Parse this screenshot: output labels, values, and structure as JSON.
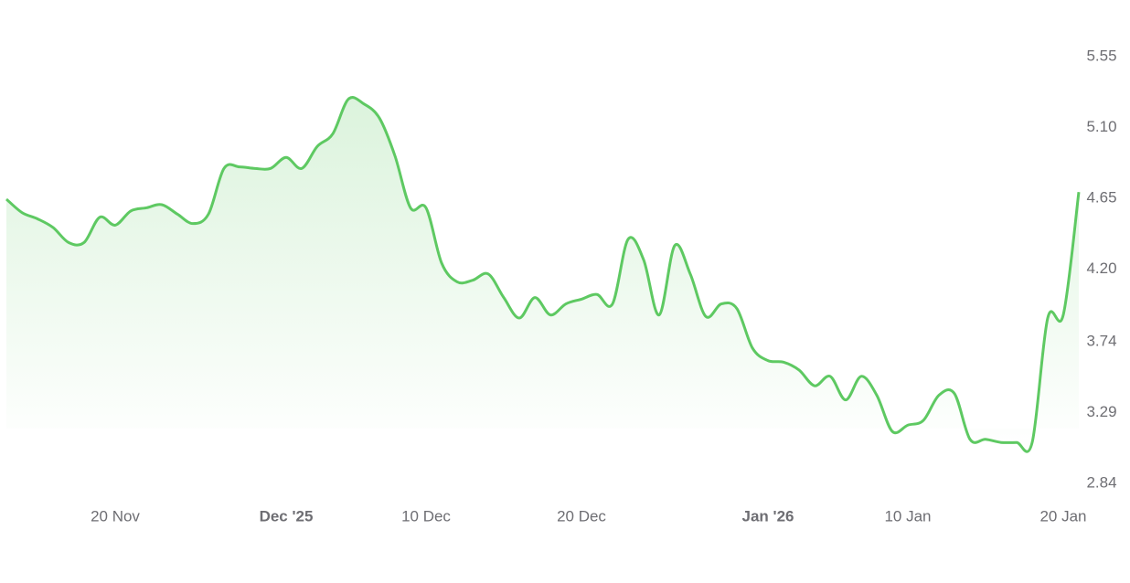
{
  "chart_data": {
    "type": "line",
    "x": [
      "2025-11-13",
      "2025-11-14",
      "2025-11-15",
      "2025-11-16",
      "2025-11-17",
      "2025-11-18",
      "2025-11-19",
      "2025-11-20",
      "2025-11-21",
      "2025-11-22",
      "2025-11-23",
      "2025-11-24",
      "2025-11-25",
      "2025-11-26",
      "2025-11-27",
      "2025-11-28",
      "2025-11-29",
      "2025-11-30",
      "2025-12-01",
      "2025-12-02",
      "2025-12-03",
      "2025-12-04",
      "2025-12-05",
      "2025-12-06",
      "2025-12-07",
      "2025-12-08",
      "2025-12-09",
      "2025-12-10",
      "2025-12-11",
      "2025-12-12",
      "2025-12-13",
      "2025-12-14",
      "2025-12-15",
      "2025-12-16",
      "2025-12-17",
      "2025-12-18",
      "2025-12-19",
      "2025-12-20",
      "2025-12-21",
      "2025-12-22",
      "2025-12-23",
      "2025-12-24",
      "2025-12-25",
      "2025-12-26",
      "2025-12-27",
      "2025-12-28",
      "2025-12-29",
      "2025-12-30",
      "2025-12-31",
      "2026-01-01",
      "2026-01-02",
      "2026-01-03",
      "2026-01-04",
      "2026-01-05",
      "2026-01-06",
      "2026-01-07",
      "2026-01-08",
      "2026-01-09",
      "2026-01-10",
      "2026-01-11",
      "2026-01-12",
      "2026-01-13",
      "2026-01-14",
      "2026-01-15",
      "2026-01-16",
      "2026-01-17",
      "2026-01-18",
      "2026-01-19",
      "2026-01-20",
      "2026-01-21"
    ],
    "series": [
      {
        "color": "#5ec962",
        "values": [
          4.645,
          4.56,
          4.52,
          4.465,
          4.37,
          4.37,
          4.53,
          4.48,
          4.57,
          4.59,
          4.61,
          4.55,
          4.49,
          4.55,
          4.84,
          4.85,
          4.84,
          4.84,
          4.91,
          4.84,
          4.98,
          5.06,
          5.28,
          5.25,
          5.16,
          4.92,
          4.59,
          4.59,
          4.24,
          4.12,
          4.13,
          4.17,
          4.02,
          3.89,
          4.02,
          3.91,
          3.98,
          4.01,
          4.04,
          3.98,
          4.39,
          4.26,
          3.91,
          4.35,
          4.17,
          3.9,
          3.98,
          3.95,
          3.7,
          3.62,
          3.61,
          3.56,
          3.46,
          3.52,
          3.37,
          3.52,
          3.4,
          3.17,
          3.21,
          3.24,
          3.4,
          3.41,
          3.12,
          3.12,
          3.1,
          3.1,
          3.1,
          3.89,
          3.91,
          4.69
        ]
      }
    ],
    "xlim": [
      "2025-11-13",
      "2026-01-21"
    ],
    "xticks": [
      {
        "value": "2025-11-20",
        "label": "20 Nov"
      },
      {
        "value": "2025-12-01",
        "label": "Dec '25"
      },
      {
        "value": "2025-12-10",
        "label": "10 Dec"
      },
      {
        "value": "2025-12-20",
        "label": "20 Dec"
      },
      {
        "value": "2026-01-01",
        "label": "Jan '26"
      },
      {
        "value": "2026-01-10",
        "label": "10 Jan"
      },
      {
        "value": "2026-01-20",
        "label": "20 Jan"
      }
    ],
    "ylim": [
      2.84,
      5.55
    ],
    "yticks": [
      5.55,
      {
        "value": 5.1,
        "label": "5.10"
      },
      4.65,
      {
        "value": 4.2,
        "label": "4.20"
      },
      3.74,
      3.29,
      2.84
    ]
  }
}
